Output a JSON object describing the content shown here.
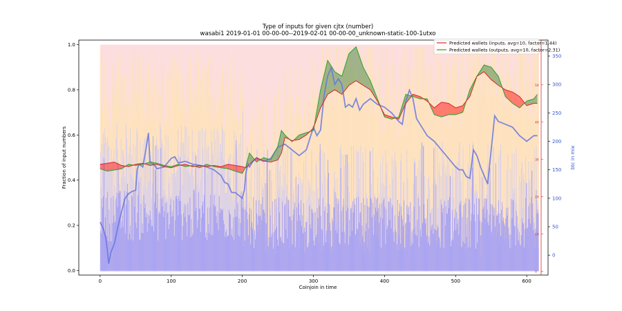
{
  "chart_data": {
    "type": "line",
    "title": "Type of inputs for given cjtx (number)",
    "subtitle": "wasabi1 2019-01-01 00-00-00--2019-02-01 00-00-00_unknown-static-100-1utxo",
    "xlabel": "Coinjoin in time",
    "ylabel": "Fraction of input numbers",
    "y2label": "btc in mix",
    "xlim": [
      -30,
      630
    ],
    "ylim": [
      -0.02,
      1.02
    ],
    "y2lim": [
      -35,
      378
    ],
    "y3lim": [
      -1,
      62
    ],
    "xticks": [
      0,
      100,
      200,
      300,
      400,
      500,
      600
    ],
    "yticks": [
      0.0,
      0.2,
      0.4,
      0.6,
      0.8,
      1.0
    ],
    "y2ticks": [
      0,
      50,
      100,
      150,
      200,
      250,
      300,
      350
    ],
    "y3ticks": [
      0,
      10,
      20,
      30,
      40,
      50
    ],
    "grid": false,
    "legend_position": "top-right",
    "colors": {
      "inputs_line": "#d62728",
      "inputs_fill": "#ff0000",
      "outputs_line": "#2ca02c",
      "outputs_fill": "#2e7d32",
      "btc_line": "#6677dd",
      "stack_blue": "#c8c8ff",
      "stack_yellow": "#ffe7a8",
      "stack_pink": "#fbd6d6",
      "bars": "#7777ff"
    },
    "series": [
      {
        "name": "Predicted wallets (inputs, avg=10, factor=1.44)",
        "x": [
          0,
          10,
          20,
          30,
          40,
          50,
          60,
          70,
          80,
          90,
          100,
          110,
          120,
          130,
          140,
          150,
          160,
          170,
          180,
          190,
          200,
          205,
          210,
          220,
          230,
          240,
          250,
          255,
          260,
          270,
          280,
          290,
          300,
          310,
          320,
          330,
          340,
          350,
          360,
          370,
          380,
          390,
          400,
          410,
          420,
          430,
          440,
          450,
          460,
          470,
          480,
          490,
          500,
          510,
          520,
          530,
          540,
          550,
          560,
          570,
          580,
          590,
          600,
          610,
          615
        ],
        "values": [
          0.47,
          0.475,
          0.48,
          0.465,
          0.46,
          0.47,
          0.475,
          0.465,
          0.47,
          0.46,
          0.455,
          0.465,
          0.47,
          0.46,
          0.465,
          0.46,
          0.465,
          0.46,
          0.47,
          0.465,
          0.46,
          0.455,
          0.47,
          0.5,
          0.485,
          0.48,
          0.49,
          0.52,
          0.59,
          0.575,
          0.58,
          0.6,
          0.63,
          0.72,
          0.78,
          0.8,
          0.78,
          0.82,
          0.84,
          0.82,
          0.8,
          0.75,
          0.69,
          0.68,
          0.67,
          0.74,
          0.78,
          0.77,
          0.75,
          0.72,
          0.745,
          0.74,
          0.72,
          0.73,
          0.77,
          0.86,
          0.88,
          0.845,
          0.82,
          0.8,
          0.79,
          0.77,
          0.73,
          0.74,
          0.74
        ]
      },
      {
        "name": "Predicted wallets (outputs, avg=10, factor=2.31)",
        "x": [
          0,
          10,
          20,
          30,
          40,
          50,
          60,
          70,
          80,
          90,
          100,
          110,
          120,
          130,
          140,
          150,
          160,
          170,
          180,
          190,
          200,
          205,
          210,
          220,
          230,
          240,
          250,
          255,
          260,
          270,
          280,
          290,
          300,
          310,
          320,
          330,
          340,
          350,
          360,
          370,
          380,
          390,
          400,
          410,
          420,
          430,
          440,
          450,
          460,
          470,
          480,
          490,
          500,
          510,
          520,
          530,
          540,
          550,
          560,
          570,
          580,
          590,
          600,
          610,
          615
        ],
        "values": [
          0.45,
          0.44,
          0.445,
          0.45,
          0.47,
          0.465,
          0.47,
          0.48,
          0.475,
          0.465,
          0.46,
          0.47,
          0.46,
          0.465,
          0.455,
          0.47,
          0.46,
          0.455,
          0.45,
          0.44,
          0.43,
          0.46,
          0.52,
          0.48,
          0.5,
          0.49,
          0.55,
          0.62,
          0.6,
          0.57,
          0.6,
          0.61,
          0.62,
          0.8,
          0.93,
          0.88,
          0.86,
          0.96,
          0.99,
          0.9,
          0.84,
          0.76,
          0.68,
          0.67,
          0.68,
          0.78,
          0.77,
          0.76,
          0.76,
          0.69,
          0.68,
          0.69,
          0.69,
          0.7,
          0.8,
          0.86,
          0.91,
          0.9,
          0.86,
          0.77,
          0.74,
          0.72,
          0.75,
          0.76,
          0.78
        ]
      },
      {
        "name": "btc in mix",
        "x": [
          0,
          5,
          8,
          10,
          12,
          15,
          20,
          25,
          30,
          35,
          40,
          45,
          50,
          52,
          55,
          60,
          65,
          68,
          70,
          75,
          80,
          90,
          100,
          105,
          110,
          120,
          130,
          140,
          150,
          160,
          170,
          175,
          180,
          185,
          190,
          195,
          200,
          203,
          205,
          208,
          210,
          215,
          220,
          230,
          240,
          250,
          260,
          270,
          280,
          290,
          300,
          305,
          310,
          315,
          320,
          325,
          330,
          335,
          340,
          345,
          350,
          355,
          360,
          365,
          370,
          380,
          390,
          400,
          410,
          420,
          425,
          430,
          435,
          440,
          445,
          450,
          460,
          470,
          480,
          490,
          500,
          505,
          510,
          515,
          520,
          525,
          530,
          535,
          540,
          545,
          550,
          555,
          560,
          570,
          580,
          590,
          600,
          605,
          610,
          615
        ],
        "values": [
          58,
          45,
          30,
          10,
          -15,
          5,
          20,
          50,
          75,
          100,
          108,
          112,
          114,
          150,
          160,
          155,
          190,
          215,
          165,
          160,
          152,
          155,
          170,
          173,
          162,
          165,
          160,
          158,
          155,
          150,
          140,
          128,
          125,
          110,
          110,
          105,
          100,
          115,
          145,
          160,
          155,
          165,
          170,
          165,
          170,
          190,
          195,
          185,
          175,
          185,
          225,
          210,
          220,
          280,
          315,
          330,
          300,
          310,
          300,
          260,
          265,
          260,
          275,
          255,
          265,
          275,
          265,
          260,
          250,
          235,
          230,
          270,
          290,
          275,
          240,
          230,
          210,
          200,
          185,
          170,
          155,
          150,
          150,
          138,
          135,
          185,
          175,
          155,
          140,
          125,
          185,
          245,
          235,
          230,
          225,
          210,
          200,
          205,
          210,
          210
        ]
      }
    ]
  }
}
